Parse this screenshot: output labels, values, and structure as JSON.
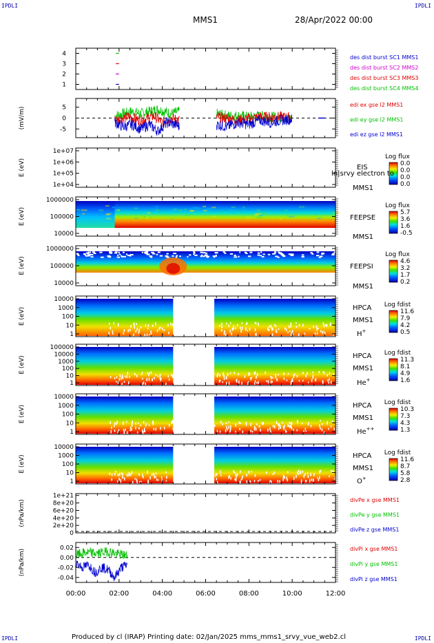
{
  "corner_labels": {
    "tl": "IPDLI",
    "tr": "IPDLI",
    "bl": "IPDLI",
    "br": "IPDLI"
  },
  "header": {
    "spacecraft": "MMS1",
    "date": "28/Apr/2022 00:00"
  },
  "footer": "Produced by cl (IRAP)   Printing date: 02/Jan/2025   mms_mms1_srvy_vue_web2.cl",
  "colors": {
    "red": "#e00000",
    "green": "#00c000",
    "blue": "#0000d0",
    "magenta": "#d000d0",
    "frame": "#000000"
  },
  "chart_data": [
    {
      "type": "line",
      "panel": "availability",
      "yticks": [
        "1",
        "2",
        "3",
        "4"
      ],
      "ylim": [
        0.5,
        4.5
      ],
      "legend": [
        {
          "name": "des dist burst SC1 MMS1",
          "color": "#0000d0"
        },
        {
          "name": "des dist burst SC2 MMS2",
          "color": "#d000d0"
        },
        {
          "name": "des dist burst SC3 MMS3",
          "color": "#e00000"
        },
        {
          "name": "des dist burst SC4 MMS4",
          "color": "#00c000"
        }
      ],
      "marks": [
        {
          "sc": 4,
          "x": [
            1.85,
            2.0
          ],
          "color": "#00c000"
        },
        {
          "sc": 3,
          "x": [
            1.85,
            2.0
          ],
          "color": "#e00000"
        },
        {
          "sc": 2,
          "x": [
            1.85,
            2.0
          ],
          "color": "#d000d0"
        },
        {
          "sc": 1,
          "x": [
            1.85,
            2.0
          ],
          "color": "#0000d0"
        }
      ]
    },
    {
      "type": "line",
      "panel": "efield",
      "ylabel": "(mV/m)",
      "yticks": [
        "5",
        "0",
        "-5"
      ],
      "ylim": [
        -9,
        9
      ],
      "xlim": [
        0,
        12
      ],
      "legend": [
        {
          "name": "edi ex gse l2 MMS1",
          "color": "#e00000"
        },
        {
          "name": "edi ey gse l2 MMS1",
          "color": "#00c000"
        },
        {
          "name": "edi ez gse l2 MMS1",
          "color": "#0000d0"
        }
      ],
      "series": [
        {
          "name": "edi ey gse l2 MMS1",
          "color": "#00c000",
          "x": [
            1.8,
            2.2,
            2.6,
            3.0,
            3.4,
            3.8,
            4.1,
            4.4,
            4.8,
            6.5,
            7.0,
            7.5,
            8.0,
            8.5,
            9.0,
            9.5,
            10.0
          ],
          "y": [
            1,
            2,
            3,
            2,
            3,
            4,
            3,
            2,
            3,
            2,
            1,
            1,
            0.5,
            1,
            0.5,
            0.3,
            0
          ]
        },
        {
          "name": "edi ex gse l2 MMS1",
          "color": "#e00000",
          "x": [
            1.8,
            2.4,
            3.0,
            3.6,
            4.0,
            4.4,
            4.8,
            6.5,
            7.5,
            8.5,
            9.5,
            10.0
          ],
          "y": [
            -1,
            0.5,
            -1,
            1,
            -2,
            0,
            -1,
            0.5,
            -1,
            0.5,
            0.5,
            0
          ]
        },
        {
          "name": "edi ez gse l2 MMS1",
          "color": "#0000d0",
          "x": [
            1.8,
            2.2,
            2.6,
            3.0,
            3.4,
            3.8,
            4.2,
            4.6,
            4.8,
            6.5,
            7.0,
            7.5,
            8.0,
            8.5,
            9.0,
            9.5,
            10.0
          ],
          "y": [
            -2,
            -4,
            -3,
            -5,
            -3,
            -6,
            -2,
            -3,
            -4,
            -3,
            -4,
            -2,
            -3,
            -1,
            -2,
            -1,
            -0.5
          ]
        }
      ]
    },
    {
      "type": "heatmap",
      "panel": "EIS",
      "ylabel": "E (eV)",
      "yscale": "log",
      "yticks": [
        "1e+07",
        "1e+06",
        "1e+05",
        "1e+04"
      ],
      "instrument": "EIS",
      "sc": "MMS1",
      "overlay": "ln|srvy electron to",
      "colorbar": {
        "label": "Log flux",
        "ticks": [
          "0.0",
          "0.0",
          "0.0",
          "0.0"
        ]
      },
      "empty": true
    },
    {
      "type": "heatmap",
      "panel": "FEEPS electrons",
      "ylabel": "E (eV)",
      "yscale": "log",
      "yticks": [
        "1000000",
        "100000",
        "10000"
      ],
      "ylim": [
        10000,
        1000000
      ],
      "instrument": "FEEPSE",
      "sc": "MMS1",
      "colorbar": {
        "label": "Log flux",
        "ticks": [
          "5.7",
          "3.6",
          "1.6",
          "-0.5"
        ]
      },
      "description_values": {
        "x_hours": [
          0,
          1.5,
          2.5,
          4,
          6,
          8,
          10,
          12
        ],
        "level_low_energy": [
          0.55,
          0.75,
          0.95,
          0.95,
          0.9,
          0.9,
          0.85,
          0.85
        ]
      }
    },
    {
      "type": "heatmap",
      "panel": "FEEPS ions",
      "ylabel": "E (eV)",
      "yscale": "log",
      "yticks": [
        "1000000",
        "100000",
        "10000"
      ],
      "ylim": [
        10000,
        1000000
      ],
      "instrument": "FEEPSI",
      "sc": "MMS1",
      "colorbar": {
        "label": "Log flux",
        "ticks": [
          "4.6",
          "3.2",
          "1.7",
          "0.2"
        ]
      }
    },
    {
      "type": "heatmap",
      "panel": "HPCA H+",
      "ylabel": "E (eV)",
      "yscale": "log",
      "yticks": [
        "10000",
        "1000",
        "100",
        "10",
        "1"
      ],
      "ylim": [
        1,
        30000
      ],
      "instrument": "HPCA",
      "sc": "MMS1",
      "species": "H",
      "species_superscript": "+",
      "colorbar": {
        "label": "Log fdist",
        "ticks": [
          "11.6",
          "7.9",
          "4.2",
          "0.5"
        ]
      },
      "gap_hours": [
        4.5,
        6.4
      ]
    },
    {
      "type": "heatmap",
      "panel": "HPCA He+",
      "ylabel": "E (eV)",
      "yscale": "log",
      "yticks": [
        "100000",
        "10000",
        "1000",
        "100",
        "10",
        "1"
      ],
      "ylim": [
        1,
        100000
      ],
      "instrument": "HPCA",
      "sc": "MMS1",
      "species": "He",
      "species_superscript": "+",
      "colorbar": {
        "label": "Log fdist",
        "ticks": [
          "11.3",
          "8.1",
          "4.9",
          "1.6"
        ]
      },
      "gap_hours": [
        4.5,
        6.4
      ]
    },
    {
      "type": "heatmap",
      "panel": "HPCA He++",
      "ylabel": "E (eV)",
      "yscale": "log",
      "yticks": [
        "10000",
        "1000",
        "100",
        "10",
        "1"
      ],
      "ylim": [
        1,
        30000
      ],
      "instrument": "HPCA",
      "sc": "MMS1",
      "species": "He",
      "species_superscript": "++",
      "colorbar": {
        "label": "Log fdist",
        "ticks": [
          "10.3",
          "7.3",
          "4.3",
          "1.3"
        ]
      },
      "gap_hours": [
        4.5,
        6.4
      ]
    },
    {
      "type": "heatmap",
      "panel": "HPCA O+",
      "ylabel": "E (eV)",
      "yscale": "log",
      "yticks": [
        "10000",
        "1000",
        "100",
        "10",
        "1"
      ],
      "ylim": [
        1,
        30000
      ],
      "instrument": "HPCA",
      "sc": "MMS1",
      "species": "O",
      "species_superscript": "+",
      "colorbar": {
        "label": "Log fdist",
        "ticks": [
          "11.6",
          "8.7",
          "5.8",
          "2.8"
        ]
      },
      "gap_hours": [
        4.5,
        6.4
      ]
    },
    {
      "type": "line",
      "panel": "divPe",
      "ylabel": "(nPa/km)",
      "yticks": [
        "1e+21",
        "8e+20",
        "6e+20",
        "4e+20",
        "2e+20",
        "0"
      ],
      "ylim": [
        0,
        1.05e+21
      ],
      "legend": [
        {
          "name": "divPe x gse MMS1",
          "color": "#e00000"
        },
        {
          "name": "divPe y gse MMS1",
          "color": "#00c000"
        },
        {
          "name": "divPe z gse MMS1",
          "color": "#0000d0"
        }
      ],
      "series": []
    },
    {
      "type": "line",
      "panel": "divPi",
      "ylabel": "(nPa/km)",
      "yticks": [
        "0.02",
        "0.00",
        "-0.02",
        "-0.04"
      ],
      "ylim": [
        -0.05,
        0.03
      ],
      "xlim": [
        0,
        12
      ],
      "legend": [
        {
          "name": "divPi x gse MMS1",
          "color": "#e00000"
        },
        {
          "name": "divPi y gse MMS1",
          "color": "#00c000"
        },
        {
          "name": "divPi z gse MMS1",
          "color": "#0000d0"
        }
      ],
      "series": [
        {
          "name": "divPi y gse MMS1",
          "color": "#00c000",
          "x": [
            0.0,
            0.5,
            1.0,
            1.5,
            2.0,
            2.4
          ],
          "y": [
            0.005,
            0.01,
            0.008,
            0.012,
            0.006,
            0.004
          ]
        },
        {
          "name": "divPi z gse MMS1",
          "color": "#0000d0",
          "x": [
            0.0,
            0.3,
            0.6,
            0.9,
            1.2,
            1.5,
            1.8,
            2.1,
            2.4
          ],
          "y": [
            -0.01,
            -0.02,
            -0.015,
            -0.03,
            -0.02,
            -0.025,
            -0.04,
            -0.02,
            -0.015
          ]
        }
      ]
    }
  ],
  "xaxis": {
    "ticks": [
      "00:00",
      "02:00",
      "04:00",
      "06:00",
      "08:00",
      "10:00",
      "12:00"
    ]
  }
}
